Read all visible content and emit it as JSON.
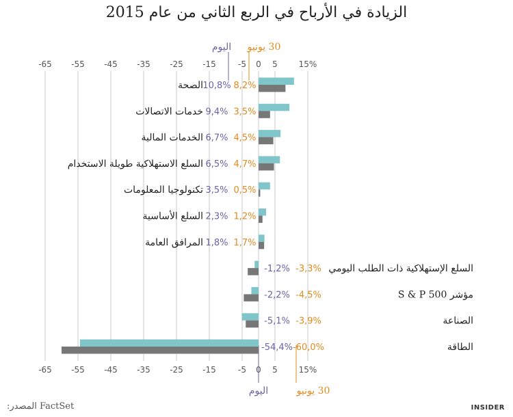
{
  "title": "الزيادة في الأرباح في الربع الثاني من عام 2015",
  "legend": {
    "today_label": "اليوم",
    "june30_label": "30 يونيو"
  },
  "source_label": "المصدر:",
  "source_value": "FactSet",
  "brand": "INSIDER",
  "colors": {
    "today_bar": "#7fc5ca",
    "june30_bar": "#777777",
    "today_text": "#6b63a6",
    "june30_text": "#e08a1e",
    "grid": "#c8c8c8"
  },
  "chart_data": {
    "type": "bar",
    "orientation": "horizontal",
    "xlim": [
      -65,
      15
    ],
    "ticks": [
      "-65",
      "-55",
      "-45",
      "-35",
      "-25",
      "-15",
      "-5",
      "0",
      "5",
      "15%"
    ],
    "tick_values": [
      -65,
      -55,
      -45,
      -35,
      -25,
      -15,
      -5,
      0,
      5,
      15
    ],
    "categories": [
      "الصحة",
      "خدمات الاتصالات",
      "الخدمات المالية",
      "السلع الاستهلاكية طويلة الاستخدام",
      "تكنولوجيا المعلومات",
      "السلع الأساسية",
      "المرافق العامة",
      "السلع الإستهلاكية ذات الطلب اليومي",
      "مؤشر S & P 500",
      "الصناعة",
      "الطاقة"
    ],
    "series": [
      {
        "name": "اليوم",
        "values": [
          10.8,
          9.4,
          6.7,
          6.5,
          3.5,
          2.3,
          1.8,
          -1.2,
          -2.2,
          -5.1,
          -54.4
        ],
        "labels": [
          "10,8%",
          "9,4%",
          "6,7%",
          "6,5%",
          "3,5%",
          "2,3%",
          "1,8%",
          "-1,2%",
          "-2,2%",
          "-5,1%",
          "-54,4%"
        ]
      },
      {
        "name": "30 يونيو",
        "values": [
          8.2,
          3.5,
          4.5,
          4.7,
          0.5,
          1.2,
          1.7,
          -3.3,
          -4.5,
          -3.9,
          -60.0
        ],
        "labels": [
          "8,2%",
          "3,5%",
          "4,5%",
          "4,7%",
          "0,5%",
          "1,2%",
          "1,7%",
          "-3,3%",
          "-4,5%",
          "-3,9%",
          "-60,0%"
        ]
      }
    ]
  }
}
